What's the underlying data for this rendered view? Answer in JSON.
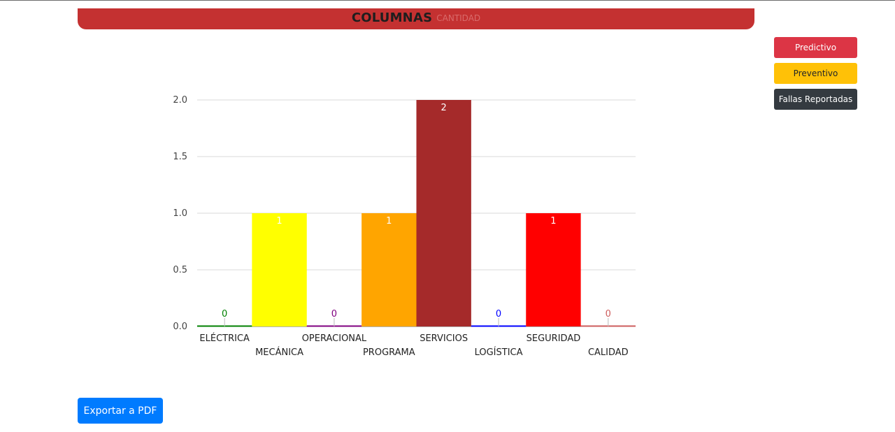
{
  "header": {
    "title": "COLUMNAS",
    "subtitle": "CANTIDAD"
  },
  "buttons": {
    "predictivo": "Predictivo",
    "preventivo": "Preventivo",
    "fallas": "Fallas Reportadas",
    "export": "Exportar a PDF"
  },
  "chart_data": {
    "type": "bar",
    "categories": [
      "ELÉCTRICA",
      "MECÁNICA",
      "OPERACIONAL",
      "PROGRAMA",
      "SERVICIOS",
      "LOGÍSTICA",
      "SEGURIDAD",
      "CALIDAD"
    ],
    "values": [
      0,
      1,
      0,
      1,
      2,
      0,
      1,
      0
    ],
    "colors": [
      "#008000",
      "#ffff00",
      "#800080",
      "#ffa500",
      "#a52a2a",
      "#0000ff",
      "#ff0000",
      "#cd5c5c"
    ],
    "data_labels": [
      "0",
      "1",
      "0",
      "1",
      "2",
      "0",
      "1",
      "0"
    ],
    "ylim": [
      0,
      2
    ],
    "yticks": [
      "0.0",
      "0.5",
      "1.0",
      "1.5",
      "2.0"
    ],
    "grid": true,
    "legend": "none"
  }
}
